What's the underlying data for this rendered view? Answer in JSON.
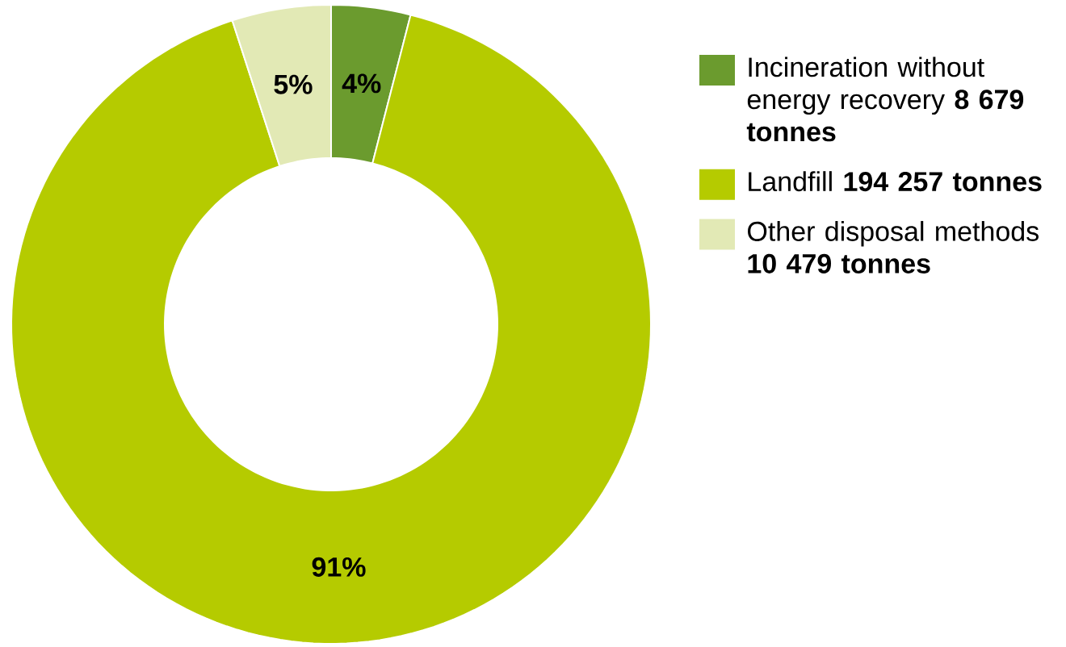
{
  "chart_data": {
    "type": "donut",
    "categories": [
      "Incineration without energy recovery **8 679 tonnes**",
      "Landfill **194 257 tonnes**",
      "Other disposal methods **10 479 tonnes**"
    ],
    "values": [
      4,
      91,
      5
    ],
    "value_labels": [
      "4%",
      "91%",
      "5%"
    ],
    "colors": [
      "#6b9b2e",
      "#b5cb00",
      "#e2e9b5"
    ],
    "legend": "right"
  }
}
